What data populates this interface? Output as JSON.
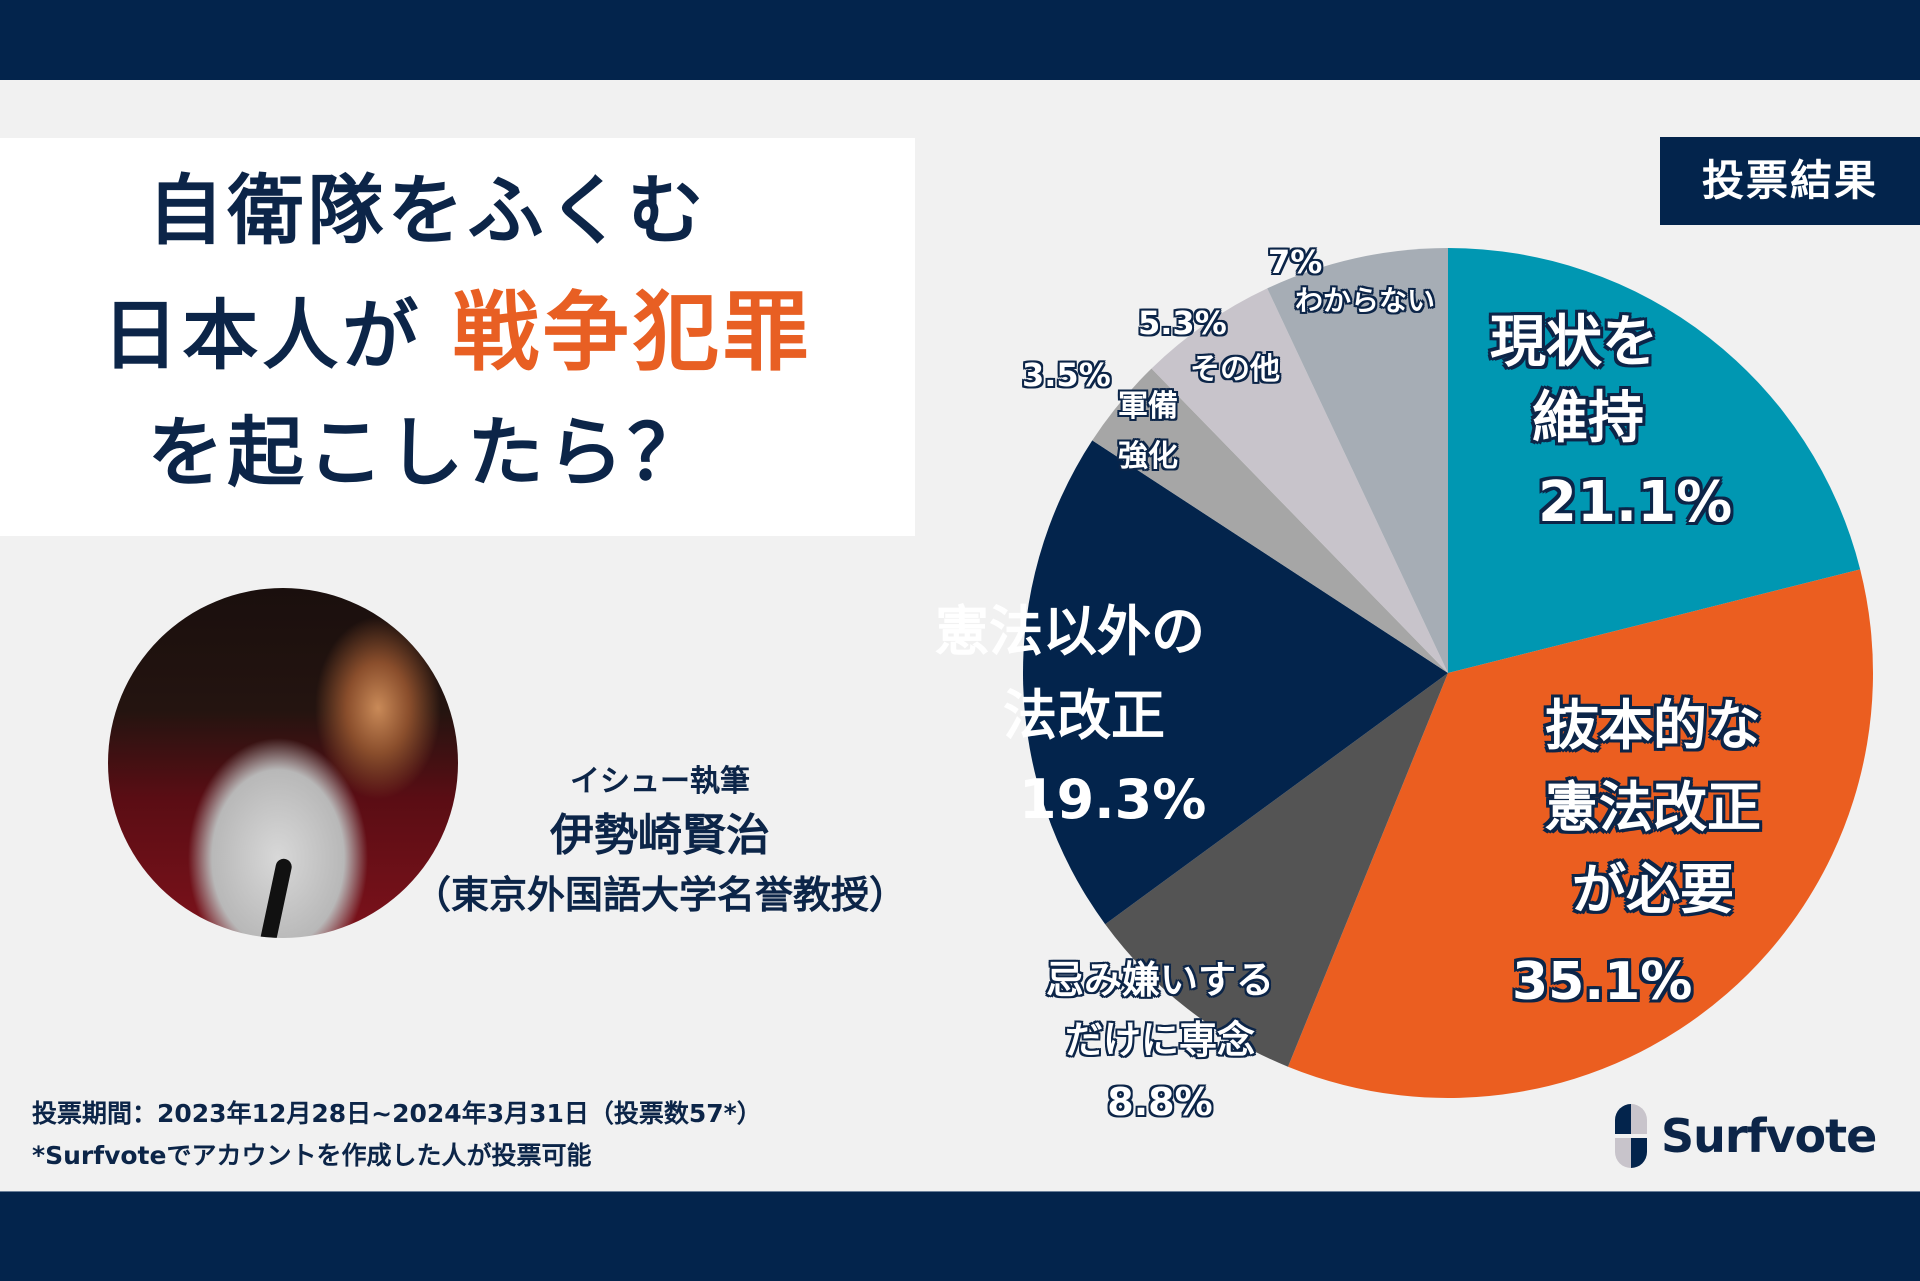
{
  "title": {
    "line1": "自衛隊をふくむ",
    "line2_prefix": "日本人が",
    "line2_accent": "戦争犯罪",
    "line3": "を起こしたら？"
  },
  "badge": {
    "label": "投票結果"
  },
  "author": {
    "role": "イシュー執筆",
    "name": "伊勢崎賢治",
    "affiliation": "（東京外国語大学名誉教授）"
  },
  "footer": {
    "period": "投票期間：2023年12月28日~2024年3月31日（投票数57*）",
    "note": "*Surfvoteでアカウントを作成した人が投票可能"
  },
  "logo": {
    "text": "Surfvote"
  },
  "colors": {
    "navy": "#03244c",
    "accent_orange": "#e85f23",
    "background": "#f1f1f1"
  },
  "labels": {
    "maintain_l1": "現状を",
    "maintain_l2": "維持",
    "maintain_pct": "21.1%",
    "amend_l1": "抜本的な",
    "amend_l2": "憲法改正",
    "amend_l3": "が必要",
    "amend_pct": "35.1%",
    "avoid_l1": "忌み嫌いする",
    "avoid_l2": "だけに専念",
    "avoid_pct": "8.8%",
    "other_law_l1": "憲法以外の",
    "other_law_l2": "法改正",
    "other_law_pct": "19.3%",
    "military_pct": "3.5%",
    "military_l1": "軍備",
    "military_l2": "強化",
    "other_pct": "5.3%",
    "other_l1": "その他",
    "dunno_pct": "7%",
    "dunno_l1": "わからない"
  },
  "chart_data": {
    "type": "pie",
    "title": "投票結果",
    "start_angle": "12 o'clock, clockwise",
    "categories": [
      "現状を維持",
      "抜本的な憲法改正が必要",
      "忌み嫌いするだけに専念",
      "憲法以外の法改正",
      "軍備強化",
      "その他",
      "わからない"
    ],
    "values": [
      21.1,
      35.1,
      8.8,
      19.3,
      3.5,
      5.3,
      7
    ],
    "colors": [
      "#0097b2",
      "#eb5e20",
      "#545454",
      "#03244c",
      "#a6a6a6",
      "#c8c4cb",
      "#a6adb5"
    ],
    "unit": "%",
    "total_votes": 57
  }
}
